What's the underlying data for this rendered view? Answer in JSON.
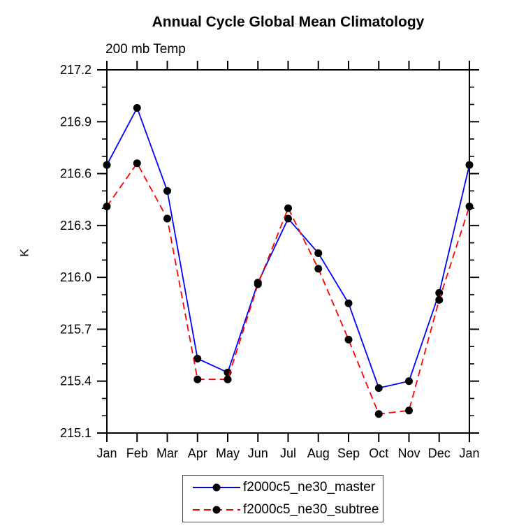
{
  "page": {
    "background": "#ffffff"
  },
  "chart": {
    "title": "Annual Cycle Global Mean Climatology",
    "subtitle": "200 mb Temp",
    "y_axis_label": "K"
  },
  "legend": {
    "entries": [
      {
        "label": "f2000c5_ne30_master",
        "line_color": "#0000ff",
        "line_style": "solid",
        "marker_color": "#000000"
      },
      {
        "label": "f2000c5_ne30_subtree",
        "line_color": "#ff0000",
        "line_style": "dashed",
        "marker_color": "#000000"
      }
    ]
  },
  "chart_data": {
    "type": "line",
    "title": "Annual Cycle Global Mean Climatology",
    "subtitle": "200 mb Temp",
    "xlabel": "",
    "ylabel": "K",
    "categories": [
      "Jan",
      "Feb",
      "Mar",
      "Apr",
      "May",
      "Jun",
      "Jul",
      "Aug",
      "Sep",
      "Oct",
      "Nov",
      "Dec",
      "Jan"
    ],
    "ylim": [
      215.1,
      217.2
    ],
    "ytick_major": [
      215.1,
      215.4,
      215.7,
      216.0,
      216.3,
      216.6,
      216.9,
      217.2
    ],
    "ytick_minor_step": 0.1,
    "grid": false,
    "legend_position": "bottom-center",
    "series": [
      {
        "name": "f2000c5_ne30_master",
        "color": "#0000ff",
        "line_style": "solid",
        "marker": "circle",
        "marker_color": "#000000",
        "values": [
          216.65,
          216.98,
          216.5,
          215.53,
          215.45,
          215.97,
          216.34,
          216.14,
          215.85,
          215.36,
          215.4,
          215.91,
          216.65
        ]
      },
      {
        "name": "f2000c5_ne30_subtree",
        "color": "#ff0000",
        "line_style": "dashed",
        "marker": "circle",
        "marker_color": "#000000",
        "values": [
          216.41,
          216.66,
          216.34,
          215.41,
          215.41,
          215.96,
          216.4,
          216.05,
          215.64,
          215.21,
          215.23,
          215.87,
          216.41
        ]
      }
    ]
  }
}
